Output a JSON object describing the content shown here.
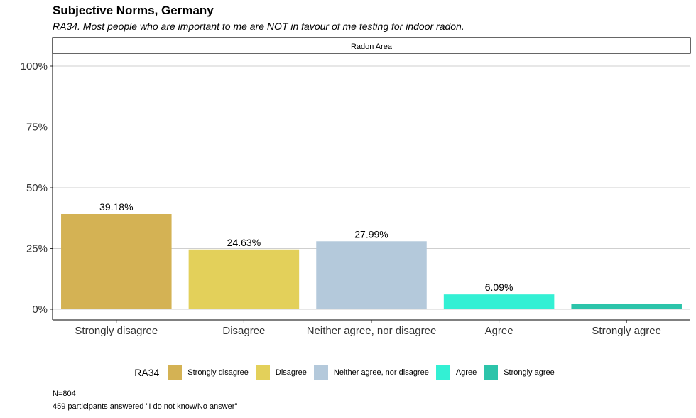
{
  "title": "Subjective Norms, Germany",
  "subtitle": "RA34. Most people who are important to me are NOT in favour of me testing for indoor radon.",
  "chart_data": {
    "type": "bar",
    "facet_label": "Radon Area",
    "categories": [
      "Strongly disagree",
      "Disagree",
      "Neither agree, nor disagree",
      "Agree",
      "Strongly agree"
    ],
    "values": [
      39.18,
      24.63,
      27.99,
      6.09,
      2.11
    ],
    "data_labels": [
      "39.18%",
      "24.63%",
      "27.99%",
      "6.09%",
      ""
    ],
    "colors": [
      "#d4b254",
      "#e3d05a",
      "#b4c9db",
      "#33f0d4",
      "#2cc4aa"
    ],
    "ylim": [
      0,
      105
    ],
    "yticks": [
      0,
      25,
      50,
      75,
      100
    ],
    "ytick_labels": [
      "0%",
      "25%",
      "50%",
      "75%",
      "100%"
    ],
    "xlabel": "",
    "ylabel": "",
    "legend": {
      "title": "RA34",
      "position": "bottom",
      "entries": [
        "Strongly disagree",
        "Disagree",
        "Neither agree, nor disagree",
        "Agree",
        "Strongly agree"
      ]
    }
  },
  "footer": {
    "n": "N=804",
    "note": "459 participants answered \"I do not know/No answer\""
  }
}
